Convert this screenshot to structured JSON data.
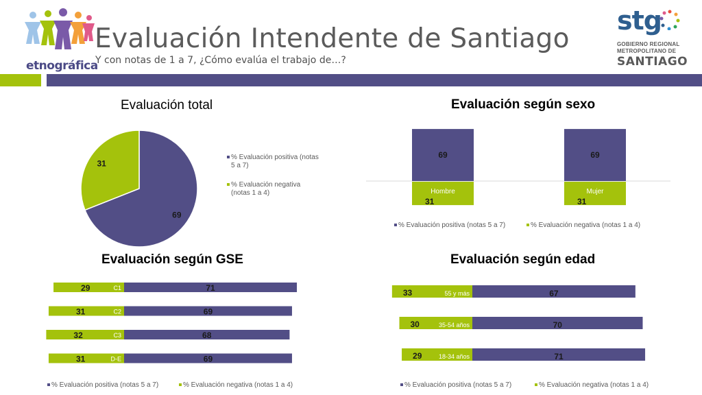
{
  "header": {
    "title": "Evaluación Intendente de Santiago",
    "subtitle": "Y con notas de 1 a 7, ¿Cómo evalúa el trabajo de…?",
    "brand_left": "etnográfica",
    "brand_right": {
      "word": "stg",
      "lines": [
        "GOBIERNO REGIONAL",
        "METROPOLITANO DE"
      ],
      "city": "SANTIAGO"
    }
  },
  "colors": {
    "positive": "#524e86",
    "negative": "#a4c20c",
    "band_green": "#a4c20c",
    "band_purple": "#524e86"
  },
  "chart_data": [
    {
      "id": "total",
      "type": "pie",
      "title": "Evaluación total",
      "series": [
        {
          "name": "% Evaluación positiva (notas 5 a 7)",
          "legend_lines": [
            "% Evaluación positiva (notas",
            "5 a 7)"
          ],
          "value": 69
        },
        {
          "name": "% Evaluación negativa (notas 1 a 4)",
          "legend_lines": [
            "% Evaluación negativa",
            "(notas 1 a 4)"
          ],
          "value": 31
        }
      ],
      "legend_position": "right"
    },
    {
      "id": "sexo",
      "type": "bar",
      "title": "Evaluación según sexo",
      "categories": [
        "Hombre",
        "Mujer"
      ],
      "series": [
        {
          "name": "% Evaluación positiva (notas 5 a 7)",
          "values": [
            69,
            69
          ]
        },
        {
          "name": "% Evaluación negativa (notas 1 a 4)",
          "values": [
            31,
            31
          ]
        }
      ],
      "legend_position": "bottom"
    },
    {
      "id": "gse",
      "type": "bar",
      "orientation": "horizontal",
      "title": "Evaluación según GSE",
      "categories": [
        "C1",
        "C2",
        "C3",
        "D-E"
      ],
      "series": [
        {
          "name": "% Evaluación positiva (notas 5 a 7)",
          "values": [
            71,
            69,
            68,
            69
          ]
        },
        {
          "name": "% Evaluación negativa (notas 1 a 4)",
          "values": [
            29,
            31,
            32,
            31
          ]
        }
      ],
      "legend_position": "bottom"
    },
    {
      "id": "edad",
      "type": "bar",
      "orientation": "horizontal",
      "title": "Evaluación según edad",
      "categories": [
        "55 y más",
        "35-54 años",
        "18-34 años"
      ],
      "series": [
        {
          "name": "% Evaluación positiva (notas 5 a 7)",
          "values": [
            67,
            70,
            71
          ]
        },
        {
          "name": "% Evaluación negativa (notas 1 a 4)",
          "values": [
            33,
            30,
            29
          ]
        }
      ],
      "legend_position": "bottom"
    }
  ]
}
